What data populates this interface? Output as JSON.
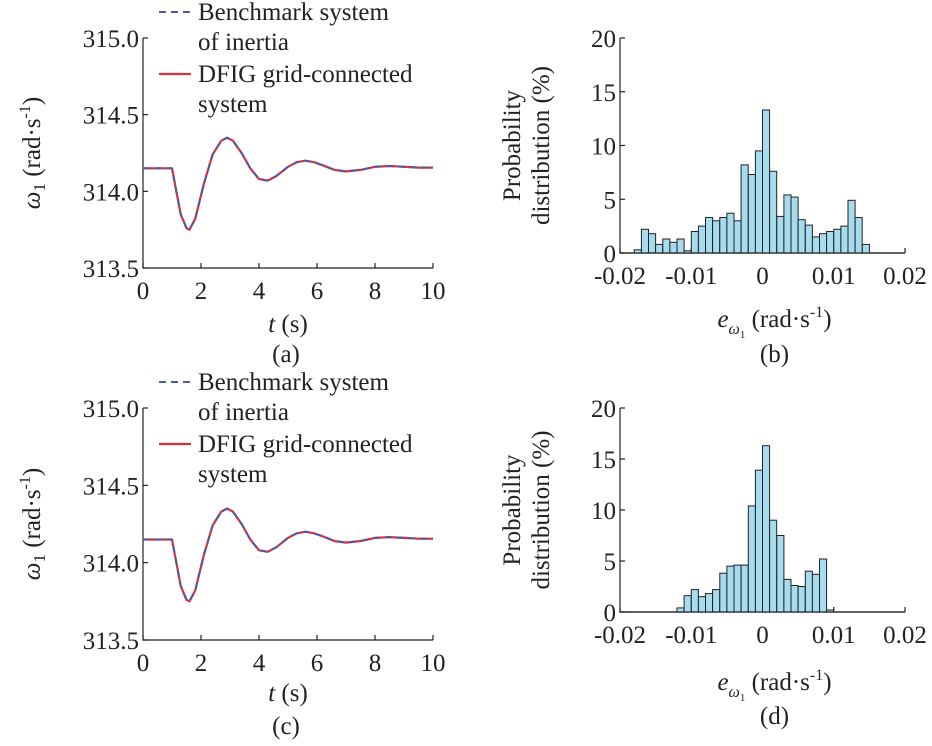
{
  "chart_data": [
    {
      "panel": "(a)",
      "type": "line",
      "xlabel_italic": "t",
      "xlabel_unit": " (s)",
      "ylabel_sym": "ω",
      "ylabel_sub": "1",
      "ylabel_unit": " (rad·s",
      "ylabel_sup": "-1",
      "ylabel_close": ")",
      "xlim": [
        0,
        10
      ],
      "ylim": [
        313.5,
        315.0
      ],
      "xticks": [
        "0",
        "2",
        "4",
        "6",
        "8",
        "10"
      ],
      "yticks": [
        "313.5",
        "314.0",
        "314.5",
        "315.0"
      ],
      "legend": {
        "position": "top-right",
        "entries": [
          "Benchmark system",
          "of inertia",
          "DFIG grid-connected",
          "system"
        ]
      },
      "series": [
        {
          "name": "Benchmark system of inertia",
          "color": "#4a5aa8",
          "dash": true,
          "x": [
            0,
            1.0,
            1.1,
            1.3,
            1.5,
            1.6,
            1.8,
            2.1,
            2.4,
            2.7,
            2.9,
            3.1,
            3.4,
            3.7,
            4.0,
            4.3,
            4.6,
            5.0,
            5.3,
            5.6,
            5.9,
            6.2,
            6.6,
            7.0,
            7.5,
            8.0,
            8.5,
            9.0,
            9.5,
            10.0
          ],
          "y": [
            314.15,
            314.15,
            314.05,
            313.85,
            313.76,
            313.75,
            313.82,
            314.05,
            314.24,
            314.33,
            314.35,
            314.33,
            314.25,
            314.15,
            314.08,
            314.07,
            314.1,
            314.16,
            314.19,
            314.2,
            314.19,
            314.17,
            314.14,
            314.13,
            314.14,
            314.16,
            314.165,
            314.16,
            314.155,
            314.155
          ]
        },
        {
          "name": "DFIG grid-connected system",
          "color": "#d9303a",
          "dash": false,
          "x": [
            0,
            1.0,
            1.1,
            1.3,
            1.5,
            1.6,
            1.8,
            2.1,
            2.4,
            2.7,
            2.9,
            3.1,
            3.4,
            3.7,
            4.0,
            4.3,
            4.6,
            5.0,
            5.3,
            5.6,
            5.9,
            6.2,
            6.6,
            7.0,
            7.5,
            8.0,
            8.5,
            9.0,
            9.5,
            10.0
          ],
          "y": [
            314.15,
            314.15,
            314.05,
            313.85,
            313.76,
            313.75,
            313.82,
            314.05,
            314.24,
            314.33,
            314.35,
            314.33,
            314.25,
            314.15,
            314.08,
            314.07,
            314.1,
            314.16,
            314.19,
            314.2,
            314.19,
            314.17,
            314.14,
            314.13,
            314.14,
            314.16,
            314.165,
            314.16,
            314.155,
            314.155
          ]
        }
      ]
    },
    {
      "panel": "(b)",
      "type": "bar",
      "xlabel_sym": "e",
      "xlabel_sub": "ω",
      "xlabel_subsub": "1",
      "xlabel_unit": " (rad·s",
      "xlabel_sup": "-1",
      "xlabel_close": ")",
      "ylabel_line1": "Probability",
      "ylabel_line2": "distribution (%)",
      "xlim": [
        -0.02,
        0.02
      ],
      "ylim": [
        0,
        20
      ],
      "xticks": [
        "-0.02",
        "-0.01",
        "0",
        "0.01",
        "0.02"
      ],
      "yticks": [
        "0",
        "5",
        "10",
        "15",
        "20"
      ],
      "bin_width": 0.001,
      "bins": [
        {
          "x": -0.018,
          "v": 0.3
        },
        {
          "x": -0.017,
          "v": 2.2
        },
        {
          "x": -0.016,
          "v": 1.8
        },
        {
          "x": -0.015,
          "v": 0.8
        },
        {
          "x": -0.014,
          "v": 1.3
        },
        {
          "x": -0.013,
          "v": 1.0
        },
        {
          "x": -0.012,
          "v": 1.3
        },
        {
          "x": -0.011,
          "v": 0.2
        },
        {
          "x": -0.01,
          "v": 2.0
        },
        {
          "x": -0.009,
          "v": 2.5
        },
        {
          "x": -0.008,
          "v": 3.3
        },
        {
          "x": -0.007,
          "v": 3.0
        },
        {
          "x": -0.006,
          "v": 3.3
        },
        {
          "x": -0.005,
          "v": 3.7
        },
        {
          "x": -0.004,
          "v": 3.0
        },
        {
          "x": -0.003,
          "v": 8.2
        },
        {
          "x": -0.002,
          "v": 7.3
        },
        {
          "x": -0.001,
          "v": 9.5
        },
        {
          "x": 0.0,
          "v": 13.3
        },
        {
          "x": 0.001,
          "v": 7.6
        },
        {
          "x": 0.002,
          "v": 3.4
        },
        {
          "x": 0.003,
          "v": 5.4
        },
        {
          "x": 0.004,
          "v": 5.2
        },
        {
          "x": 0.005,
          "v": 3.1
        },
        {
          "x": 0.006,
          "v": 2.6
        },
        {
          "x": 0.007,
          "v": 1.5
        },
        {
          "x": 0.008,
          "v": 1.8
        },
        {
          "x": 0.009,
          "v": 2.0
        },
        {
          "x": 0.01,
          "v": 2.2
        },
        {
          "x": 0.011,
          "v": 2.5
        },
        {
          "x": 0.012,
          "v": 4.9
        },
        {
          "x": 0.013,
          "v": 3.3
        },
        {
          "x": 0.014,
          "v": 0.8
        }
      ]
    },
    {
      "panel": "(c)",
      "type": "line",
      "xlabel_italic": "t",
      "xlabel_unit": " (s)",
      "ylabel_sym": "ω",
      "ylabel_sub": "1",
      "ylabel_unit": " (rad·s",
      "ylabel_sup": "-1",
      "ylabel_close": ")",
      "xlim": [
        0,
        10
      ],
      "ylim": [
        313.5,
        315.0
      ],
      "xticks": [
        "0",
        "2",
        "4",
        "6",
        "8",
        "10"
      ],
      "yticks": [
        "313.5",
        "314.0",
        "314.5",
        "315.0"
      ],
      "legend": {
        "position": "top-right",
        "entries": [
          "Benchmark system",
          "of inertia",
          "DFIG grid-connected",
          "system"
        ]
      },
      "series": [
        {
          "name": "Benchmark system of inertia",
          "color": "#4a5aa8",
          "dash": true,
          "x": [
            0,
            1.0,
            1.1,
            1.3,
            1.5,
            1.6,
            1.8,
            2.1,
            2.4,
            2.7,
            2.9,
            3.1,
            3.4,
            3.7,
            4.0,
            4.3,
            4.6,
            5.0,
            5.3,
            5.6,
            5.9,
            6.2,
            6.6,
            7.0,
            7.5,
            8.0,
            8.5,
            9.0,
            9.5,
            10.0
          ],
          "y": [
            314.15,
            314.15,
            314.05,
            313.85,
            313.76,
            313.75,
            313.82,
            314.05,
            314.24,
            314.33,
            314.35,
            314.33,
            314.25,
            314.15,
            314.08,
            314.07,
            314.1,
            314.16,
            314.19,
            314.2,
            314.19,
            314.17,
            314.14,
            314.13,
            314.14,
            314.16,
            314.165,
            314.16,
            314.155,
            314.155
          ]
        },
        {
          "name": "DFIG grid-connected system",
          "color": "#d9303a",
          "dash": false,
          "x": [
            0,
            1.0,
            1.1,
            1.3,
            1.5,
            1.6,
            1.8,
            2.1,
            2.4,
            2.7,
            2.9,
            3.1,
            3.4,
            3.7,
            4.0,
            4.3,
            4.6,
            5.0,
            5.3,
            5.6,
            5.9,
            6.2,
            6.6,
            7.0,
            7.5,
            8.0,
            8.5,
            9.0,
            9.5,
            10.0
          ],
          "y": [
            314.15,
            314.15,
            314.05,
            313.85,
            313.76,
            313.75,
            313.82,
            314.05,
            314.24,
            314.33,
            314.35,
            314.33,
            314.25,
            314.15,
            314.08,
            314.07,
            314.1,
            314.16,
            314.19,
            314.2,
            314.19,
            314.17,
            314.14,
            314.13,
            314.14,
            314.16,
            314.165,
            314.16,
            314.155,
            314.155
          ]
        }
      ]
    },
    {
      "panel": "(d)",
      "type": "bar",
      "xlabel_sym": "e",
      "xlabel_sub": "ω",
      "xlabel_subsub": "1",
      "xlabel_unit": " (rad·s",
      "xlabel_sup": "-1",
      "xlabel_close": ")",
      "ylabel_line1": "Probability",
      "ylabel_line2": "distribution (%)",
      "xlim": [
        -0.02,
        0.02
      ],
      "ylim": [
        0,
        20
      ],
      "xticks": [
        "-0.02",
        "-0.01",
        "0",
        "0.01",
        "0.02"
      ],
      "yticks": [
        "0",
        "5",
        "10",
        "15",
        "20"
      ],
      "bin_width": 0.001,
      "bins": [
        {
          "x": -0.012,
          "v": 0.4
        },
        {
          "x": -0.011,
          "v": 1.6
        },
        {
          "x": -0.01,
          "v": 2.2
        },
        {
          "x": -0.009,
          "v": 1.5
        },
        {
          "x": -0.008,
          "v": 1.8
        },
        {
          "x": -0.007,
          "v": 2.2
        },
        {
          "x": -0.006,
          "v": 3.8
        },
        {
          "x": -0.005,
          "v": 4.5
        },
        {
          "x": -0.004,
          "v": 4.6
        },
        {
          "x": -0.003,
          "v": 4.6
        },
        {
          "x": -0.002,
          "v": 10.4
        },
        {
          "x": -0.001,
          "v": 13.9
        },
        {
          "x": 0.0,
          "v": 16.3
        },
        {
          "x": 0.001,
          "v": 9.0
        },
        {
          "x": 0.002,
          "v": 7.5
        },
        {
          "x": 0.003,
          "v": 3.2
        },
        {
          "x": 0.004,
          "v": 2.6
        },
        {
          "x": 0.005,
          "v": 2.5
        },
        {
          "x": 0.006,
          "v": 4.0
        },
        {
          "x": 0.007,
          "v": 3.7
        },
        {
          "x": 0.008,
          "v": 5.2
        },
        {
          "x": 0.009,
          "v": 0.2
        }
      ]
    }
  ]
}
